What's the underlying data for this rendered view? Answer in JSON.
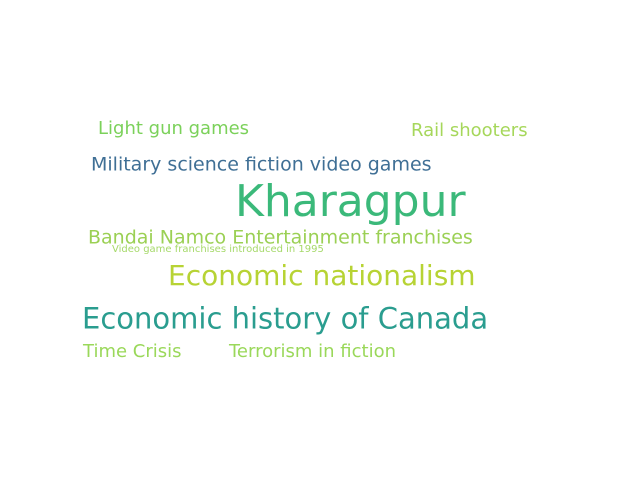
{
  "words": [
    {
      "text": "Kharagpur",
      "color": "#3bb97a"
    },
    {
      "text": "Economic history of Canada",
      "color": "#2a9d8f"
    },
    {
      "text": "Economic nationalism",
      "color": "#b7d334"
    },
    {
      "text": "Bandai Namco Entertainment franchises",
      "color": "#9bd054"
    },
    {
      "text": "Military science fiction video games",
      "color": "#3f6f95"
    },
    {
      "text": "Light gun games",
      "color": "#7bd15a"
    },
    {
      "text": "Rail shooters",
      "color": "#a6d75b"
    },
    {
      "text": "Time Crisis",
      "color": "#9ad85a"
    },
    {
      "text": "Terrorism in fiction",
      "color": "#9ad85a"
    },
    {
      "text": "Video game franchises introduced in 1995",
      "color": "#a6d96a"
    }
  ]
}
